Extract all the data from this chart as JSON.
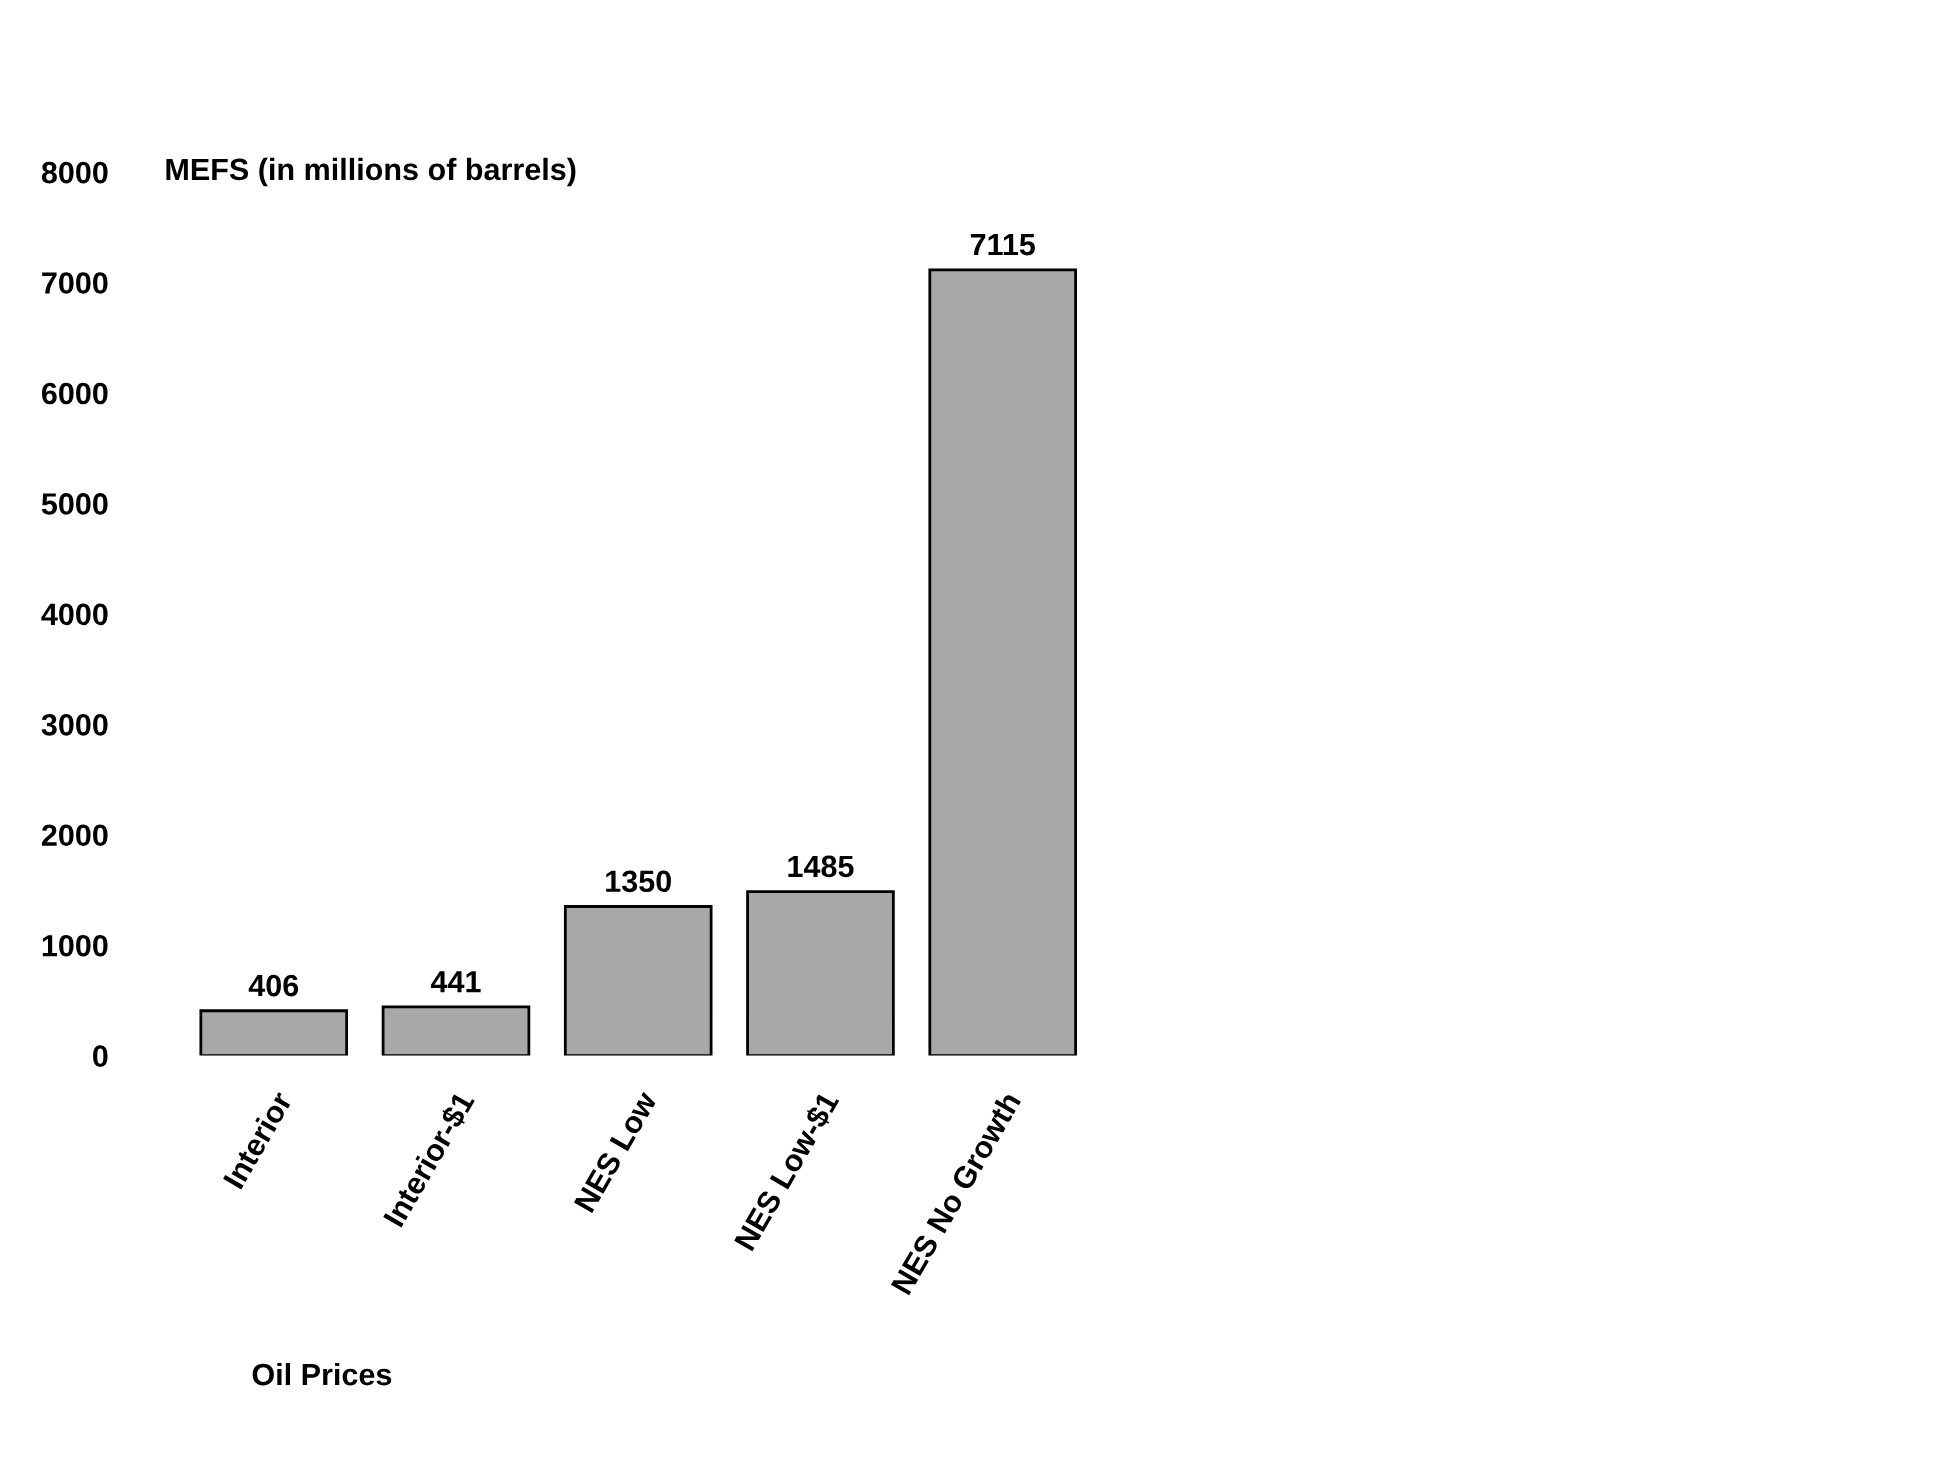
{
  "chart_data": {
    "type": "bar",
    "categories": [
      "Interior",
      "Interior-$1",
      "NES Low",
      "NES Low-$1",
      "NES No Growth"
    ],
    "values": [
      406,
      441,
      1350,
      1485,
      7115
    ],
    "color": "#a8a8a8",
    "ylabel": "MEFS (in millions of barrels)",
    "xlabel": "Oil Prices",
    "ylim": [
      0,
      8000
    ],
    "yticks": [
      0,
      1000,
      2000,
      3000,
      4000,
      5000,
      6000,
      7000,
      8000
    ],
    "data_labels": true,
    "grid": false
  }
}
